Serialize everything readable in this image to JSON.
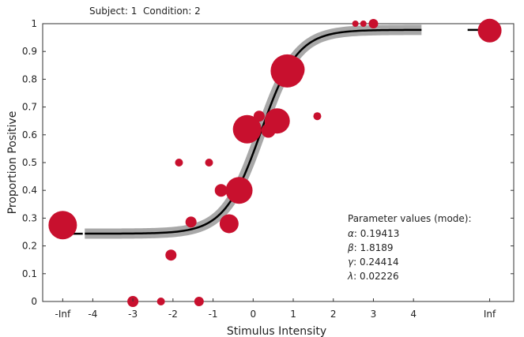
{
  "header": {
    "subject_label": "Subject: 1",
    "condition_label": "Condition: 2"
  },
  "chart_data": {
    "type": "scatter",
    "title": "",
    "xlabel": "Stimulus Intensity",
    "ylabel": "Proportion Positive",
    "xlim": [
      -5.25,
      6.5
    ],
    "ylim": [
      0,
      1
    ],
    "x_ticks": [
      {
        "value": -4.75,
        "label": "-Inf"
      },
      {
        "value": -4,
        "label": "-4"
      },
      {
        "value": -3,
        "label": "-3"
      },
      {
        "value": -2,
        "label": "-2"
      },
      {
        "value": -1,
        "label": "-1"
      },
      {
        "value": 0,
        "label": "0"
      },
      {
        "value": 1,
        "label": "1"
      },
      {
        "value": 2,
        "label": "2"
      },
      {
        "value": 3,
        "label": "3"
      },
      {
        "value": 4,
        "label": "4"
      },
      {
        "value": 5.9,
        "label": "Inf"
      }
    ],
    "y_ticks": [
      {
        "value": 0,
        "label": "0"
      },
      {
        "value": 0.1,
        "label": "0.1"
      },
      {
        "value": 0.2,
        "label": "0.2"
      },
      {
        "value": 0.3,
        "label": "0.3"
      },
      {
        "value": 0.4,
        "label": "0.4"
      },
      {
        "value": 0.5,
        "label": "0.5"
      },
      {
        "value": 0.6,
        "label": "0.6"
      },
      {
        "value": 0.7,
        "label": "0.7"
      },
      {
        "value": 0.8,
        "label": "0.8"
      },
      {
        "value": 0.9,
        "label": "0.9"
      },
      {
        "value": 1,
        "label": "1"
      }
    ],
    "grid": false,
    "colors": {
      "points": "#c8102e",
      "fit_line": "#000000",
      "credible_band": "#a8a8a8",
      "axes": "#333333"
    },
    "fit_range": [
      -4.2,
      4.2
    ],
    "parameters": {
      "alpha": 0.19413,
      "beta": 1.8189,
      "gamma": 0.24414,
      "lambda": 0.02226
    },
    "points": [
      {
        "x": -4.75,
        "y": 0.275,
        "r": 18
      },
      {
        "x": -3.0,
        "y": 0.0,
        "r": 7
      },
      {
        "x": -2.3,
        "y": 0.0,
        "r": 5
      },
      {
        "x": -1.35,
        "y": 0.0,
        "r": 6
      },
      {
        "x": -2.05,
        "y": 0.167,
        "r": 7
      },
      {
        "x": -1.85,
        "y": 0.5,
        "r": 5
      },
      {
        "x": -1.1,
        "y": 0.5,
        "r": 5
      },
      {
        "x": -1.55,
        "y": 0.286,
        "r": 7
      },
      {
        "x": -0.8,
        "y": 0.4,
        "r": 8
      },
      {
        "x": -0.6,
        "y": 0.28,
        "r": 12
      },
      {
        "x": -0.35,
        "y": 0.4,
        "r": 17
      },
      {
        "x": -0.15,
        "y": 0.62,
        "r": 18
      },
      {
        "x": 0.15,
        "y": 0.667,
        "r": 7
      },
      {
        "x": 0.38,
        "y": 0.615,
        "r": 9
      },
      {
        "x": 0.6,
        "y": 0.65,
        "r": 16
      },
      {
        "x": 0.95,
        "y": 0.835,
        "r": 17
      },
      {
        "x": 0.85,
        "y": 0.83,
        "r": 21
      },
      {
        "x": 1.6,
        "y": 0.667,
        "r": 5
      },
      {
        "x": 2.55,
        "y": 1.0,
        "r": 4
      },
      {
        "x": 2.75,
        "y": 1.0,
        "r": 4
      },
      {
        "x": 3.0,
        "y": 1.0,
        "r": 6
      },
      {
        "x": 5.9,
        "y": 0.975,
        "r": 15
      }
    ]
  },
  "legend": {
    "title": "Parameter values (mode):",
    "entries": [
      {
        "symbol": "α",
        "value": ": 0.19413"
      },
      {
        "symbol": "β",
        "value": ": 1.8189"
      },
      {
        "symbol": "γ",
        "value": ": 0.24414"
      },
      {
        "symbol": "λ",
        "value": ": 0.02226"
      }
    ]
  }
}
